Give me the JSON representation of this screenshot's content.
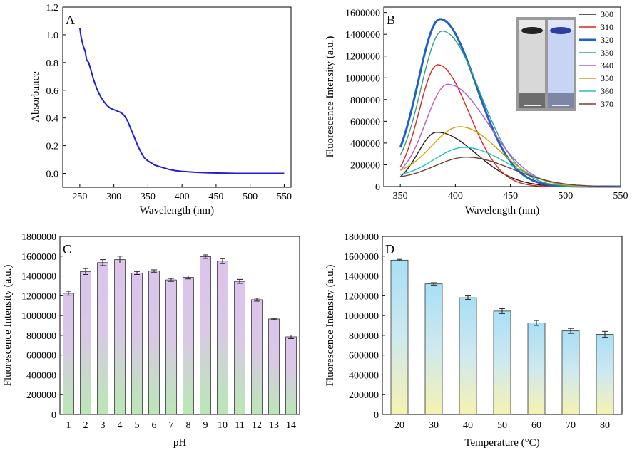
{
  "chart_data": [
    {
      "panel": "A",
      "type": "line",
      "xlabel": "Wavelength (nm)",
      "ylabel": "Absorbance",
      "xlim": [
        225,
        560
      ],
      "ylim": [
        -0.1,
        1.2
      ],
      "xticks": [
        250,
        300,
        350,
        400,
        450,
        500,
        550
      ],
      "yticks": [
        0.0,
        0.2,
        0.4,
        0.6,
        0.8,
        1.0,
        1.2
      ],
      "color": "#1f1fd6",
      "series": [
        {
          "name": "Absorbance",
          "x": [
            250,
            252,
            255,
            258,
            260,
            263,
            266,
            270,
            275,
            280,
            285,
            290,
            295,
            300,
            305,
            310,
            315,
            320,
            325,
            330,
            335,
            340,
            345,
            350,
            355,
            360,
            370,
            380,
            390,
            400,
            420,
            440,
            460,
            480,
            500,
            520,
            550
          ],
          "y": [
            1.05,
            0.98,
            0.92,
            0.88,
            0.82,
            0.8,
            0.75,
            0.68,
            0.61,
            0.56,
            0.52,
            0.49,
            0.47,
            0.46,
            0.45,
            0.44,
            0.42,
            0.38,
            0.32,
            0.26,
            0.2,
            0.15,
            0.11,
            0.09,
            0.075,
            0.06,
            0.045,
            0.03,
            0.02,
            0.015,
            0.008,
            0.004,
            0.002,
            0.0,
            0.0,
            0.0,
            0.0
          ]
        }
      ]
    },
    {
      "panel": "B",
      "type": "line",
      "xlabel": "Wavelength (nm)",
      "ylabel": "Fluorescence Intensity (a.u.)",
      "xlim": [
        335,
        550
      ],
      "ylim": [
        0,
        1650000
      ],
      "xticks": [
        350,
        400,
        450,
        500,
        550
      ],
      "yticks": [
        0,
        200000,
        400000,
        600000,
        800000,
        1000000,
        1200000,
        1400000,
        1600000
      ],
      "legend_position": "top-right",
      "series": [
        {
          "name": "300",
          "color": "#222222",
          "peak_x": 383,
          "peak_y": 500000,
          "start_y": 90000,
          "width_l": 24,
          "width_r": 48
        },
        {
          "name": "310",
          "color": "#e02020",
          "peak_x": 384,
          "peak_y": 1120000,
          "start_y": 180000,
          "width_l": 24,
          "width_r": 38
        },
        {
          "name": "320",
          "color": "#1f5fc8",
          "peak_x": 386,
          "peak_y": 1540000,
          "start_y": 360000,
          "width_l": 28,
          "width_r": 44
        },
        {
          "name": "330",
          "color": "#2ea876",
          "peak_x": 388,
          "peak_y": 1430000,
          "start_y": 290000,
          "width_l": 27,
          "width_r": 46
        },
        {
          "name": "340",
          "color": "#b05ad8",
          "peak_x": 393,
          "peak_y": 940000,
          "start_y": 150000,
          "width_l": 28,
          "width_r": 50
        },
        {
          "name": "350",
          "color": "#d4a000",
          "peak_x": 404,
          "peak_y": 550000,
          "start_y": 150000,
          "width_l": 36,
          "width_r": 48
        },
        {
          "name": "360",
          "color": "#20c0c8",
          "peak_x": 408,
          "peak_y": 360000,
          "start_y": 110000,
          "width_l": 38,
          "width_r": 52
        },
        {
          "name": "370",
          "color": "#7a3d35",
          "peak_x": 410,
          "peak_y": 270000,
          "start_y": 90000,
          "width_l": 40,
          "width_r": 55
        }
      ]
    },
    {
      "panel": "C",
      "type": "bar",
      "xlabel": "pH",
      "ylabel": "Fluorescence Intensity (a.u.)",
      "ylim": [
        0,
        1800000
      ],
      "yticks": [
        0,
        200000,
        400000,
        600000,
        800000,
        1000000,
        1200000,
        1400000,
        1600000,
        1800000
      ],
      "categories": [
        "1",
        "2",
        "3",
        "4",
        "5",
        "6",
        "7",
        "8",
        "9",
        "10",
        "11",
        "12",
        "13",
        "14"
      ],
      "values": [
        1225000,
        1445000,
        1535000,
        1565000,
        1430000,
        1450000,
        1360000,
        1385000,
        1595000,
        1550000,
        1345000,
        1160000,
        965000,
        785000
      ],
      "errors": [
        20000,
        30000,
        30000,
        35000,
        15000,
        12000,
        15000,
        15000,
        18000,
        25000,
        20000,
        15000,
        8000,
        18000
      ]
    },
    {
      "panel": "D",
      "type": "bar",
      "xlabel": "Temperature (°C)",
      "ylabel": "Fluorescence Intensity (a.u.)",
      "ylim": [
        0,
        1800000
      ],
      "yticks": [
        0,
        200000,
        400000,
        600000,
        800000,
        1000000,
        1200000,
        1400000,
        1600000,
        1800000
      ],
      "categories": [
        "20",
        "30",
        "40",
        "50",
        "60",
        "70",
        "80"
      ],
      "values": [
        1560000,
        1320000,
        1180000,
        1045000,
        925000,
        845000,
        810000
      ],
      "errors": [
        8000,
        12000,
        18000,
        25000,
        25000,
        25000,
        30000
      ]
    }
  ],
  "panels": {
    "A": "A",
    "B": "B",
    "C": "C",
    "D": "D"
  },
  "legend_title": ""
}
